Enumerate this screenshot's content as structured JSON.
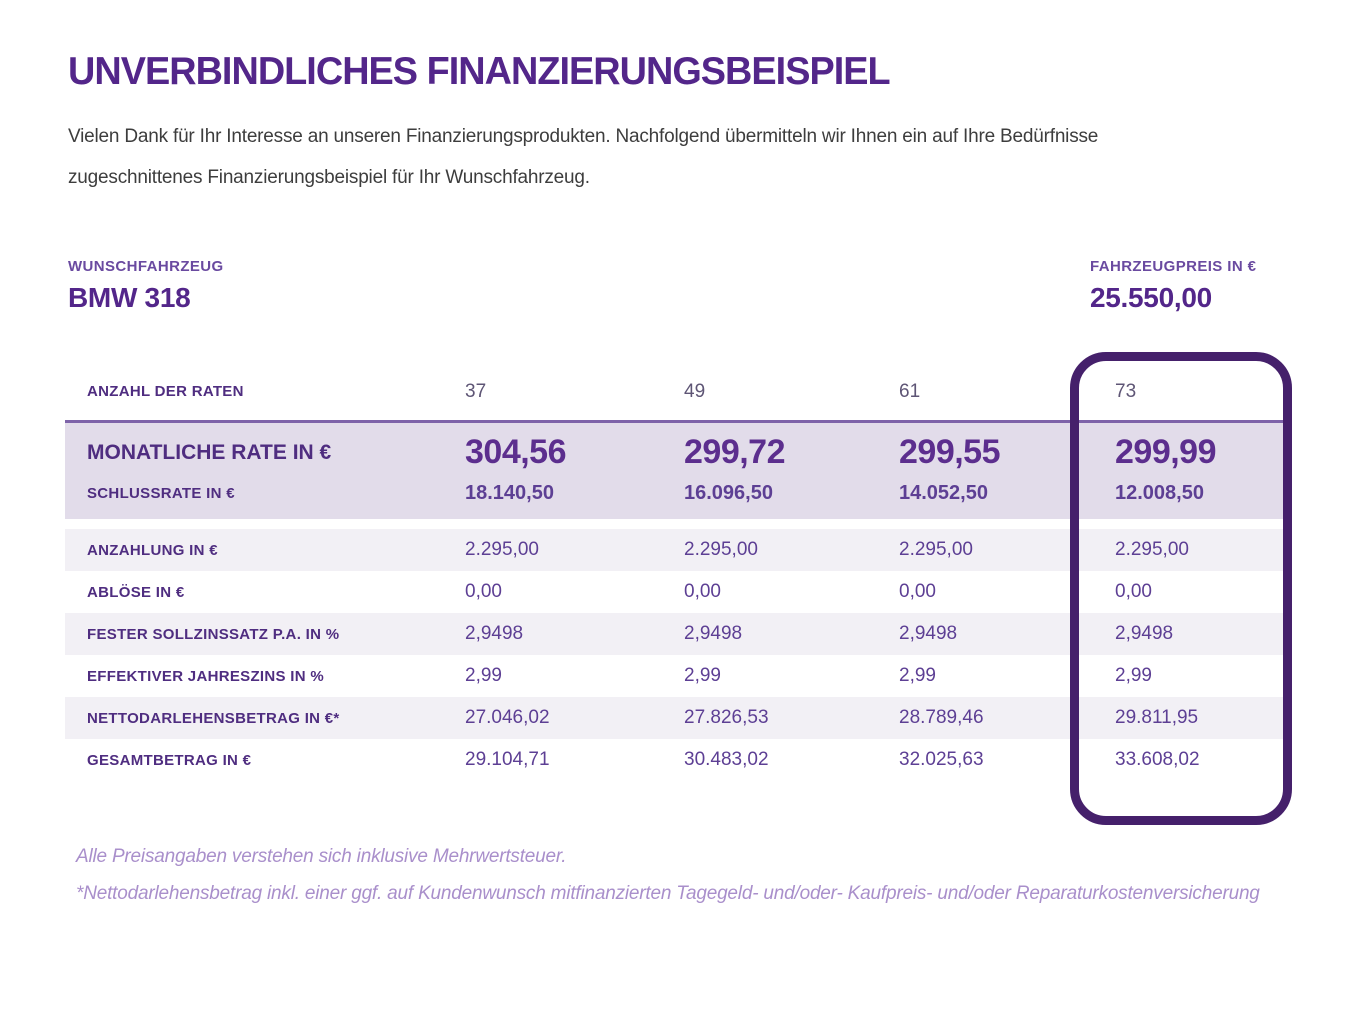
{
  "page": {
    "title": "UNVERBINDLICHES FINANZIERUNGSBEISPIEL",
    "intro_line1": "Vielen Dank für Ihr Interesse an unseren Finanzierungsprodukten. Nachfolgend übermitteln wir Ihnen ein auf Ihre Bedürfnisse",
    "intro_line2": "zugeschnittenes Finanzierungsbeispiel für Ihr Wunschfahrzeug."
  },
  "vehicle": {
    "label": "WUNSCHFAHRZEUG",
    "name": "BMW 318"
  },
  "price": {
    "label": "FAHRZEUGPREIS IN €",
    "value": "25.550,00"
  },
  "table": {
    "header": {
      "label": "ANZAHL DER RATEN",
      "values": [
        "37",
        "49",
        "61",
        "73"
      ]
    },
    "highlight_band": {
      "rate_label": "MONATLICHE RATE IN €",
      "rate_values": [
        "304,56",
        "299,72",
        "299,55",
        "299,99"
      ],
      "final_label": "SCHLUSSRATE IN €",
      "final_values": [
        "18.140,50",
        "16.096,50",
        "14.052,50",
        "12.008,50"
      ]
    },
    "rows": [
      {
        "label": "ANZAHLUNG IN €",
        "values": [
          "2.295,00",
          "2.295,00",
          "2.295,00",
          "2.295,00"
        ]
      },
      {
        "label": "ABLÖSE IN €",
        "values": [
          "0,00",
          "0,00",
          "0,00",
          "0,00"
        ]
      },
      {
        "label": "FESTER SOLLZINSSATZ P.A. IN %",
        "values": [
          "2,9498",
          "2,9498",
          "2,9498",
          "2,9498"
        ]
      },
      {
        "label": "EFFEKTIVER JAHRESZINS IN %",
        "values": [
          "2,99",
          "2,99",
          "2,99",
          "2,99"
        ]
      },
      {
        "label": "NETTODARLEHENSBETRAG IN €*",
        "values": [
          "27.046,02",
          "27.826,53",
          "28.789,46",
          "29.811,95"
        ]
      },
      {
        "label": "GESAMTBETRAG IN €",
        "values": [
          "29.104,71",
          "30.483,02",
          "32.025,63",
          "33.608,02"
        ]
      }
    ],
    "highlighted_column": "73"
  },
  "footnotes": {
    "line1": "Alle Preisangaben verstehen sich inklusive Mehrwertsteuer.",
    "line2": "*Nettodarlehensbetrag inkl. einer ggf. auf Kundenwunsch mitfinanzierten Tagegeld- und/oder- Kaufpreis- und/oder Reparaturkostenversicherung"
  },
  "colors": {
    "accent": "#5c2e8e",
    "accent_dark": "#53268a",
    "accent_mid": "#6a4aa0",
    "accent_label": "#4f2d80",
    "accent_value": "#5d3f94",
    "band_bg": "#e2dcea",
    "row_alt_bg": "#f2f0f5",
    "divider": "#7e63a9",
    "highlight_border": "#45206b",
    "footnote": "#a98fcb",
    "body_text": "#3d3d3d"
  }
}
